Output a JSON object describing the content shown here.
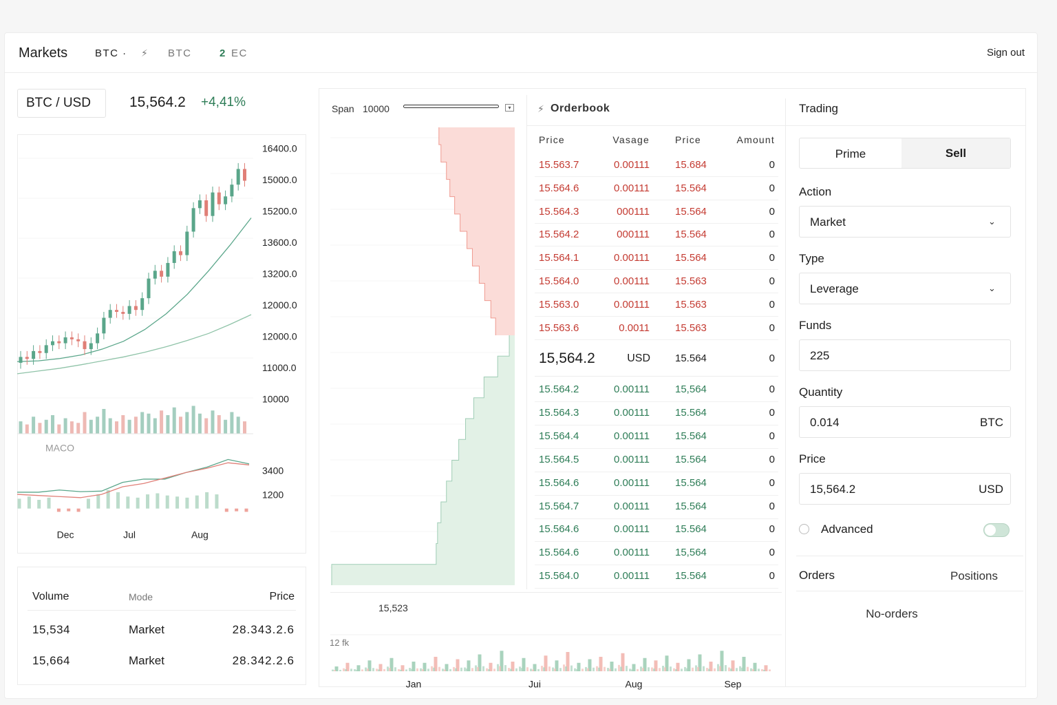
{
  "header": {
    "title": "Markets",
    "nav": [
      "BTC ·",
      "BTC"
    ],
    "count": "2",
    "count_unit": "EC",
    "sign_out": "Sign out"
  },
  "ticker": {
    "pair": "BTC / USD",
    "price": "15,564.2",
    "change": "+4,41%"
  },
  "trades": {
    "columns": [
      "Volume",
      "Mode",
      "Price"
    ],
    "rows": [
      [
        "15,534",
        "Market",
        "28.343.2.6"
      ],
      [
        "15,664",
        "Market",
        "28.342.2.6"
      ]
    ]
  },
  "orderbook": {
    "title": "Orderbook",
    "columns": [
      "Price",
      "Vasage",
      "Price",
      "Amount"
    ],
    "asks": [
      [
        "15.563.7",
        "0.00111",
        "15.684",
        "0"
      ],
      [
        "15.564.6",
        "0.00111",
        "15.564",
        "0"
      ],
      [
        "15.564.3",
        "000111",
        "15.564",
        "0"
      ],
      [
        "15.564.2",
        "000111",
        "15.564",
        "0"
      ],
      [
        "15.564.1",
        "0.00111",
        "15.564",
        "0"
      ],
      [
        "15.564.0",
        "0.00111",
        "15.563",
        "0"
      ],
      [
        "15.563.0",
        "0.00111",
        "15.563",
        "0"
      ],
      [
        "15.563.6",
        "0.0011",
        "15.563",
        "0"
      ]
    ],
    "mid": [
      "15,564.2",
      "USD",
      "15.564",
      "0"
    ],
    "bids": [
      [
        "15.564.2",
        "0.00111",
        "15,564",
        "0"
      ],
      [
        "15.564.3",
        "0.00111",
        "15.564",
        "0"
      ],
      [
        "15.564.4",
        "0.00111",
        "15.564",
        "0"
      ],
      [
        "15.564.5",
        "0.00111",
        "15.564",
        "0"
      ],
      [
        "15.564.6",
        "0.00111",
        "15.564",
        "0"
      ],
      [
        "15.564.7",
        "0.00111",
        "15.564",
        "0"
      ],
      [
        "15.564.6",
        "0.00111",
        "15.564",
        "0"
      ],
      [
        "15.564.6",
        "0.00111",
        "15,564",
        "0"
      ],
      [
        "15.564.0",
        "0.00111",
        "15.564",
        "0"
      ]
    ]
  },
  "trading": {
    "title": "Trading",
    "tabs": [
      "Prime",
      "Sell"
    ],
    "fields": [
      {
        "label": "Action",
        "value": "Market",
        "select": true
      },
      {
        "label": "Type",
        "value": "Leverage",
        "select": true
      },
      {
        "label": "Funds",
        "value": "225"
      },
      {
        "label": "Quantity",
        "value": "0.014",
        "unit": "BTC"
      },
      {
        "label": "Price",
        "value": "15,564.2",
        "unit": "USD"
      }
    ],
    "advanced": "Advanced",
    "list_tabs": [
      "Orders",
      "Positions"
    ],
    "empty": "No-orders"
  },
  "chart_data": [
    {
      "type": "candlestick",
      "categories": [
        null,
        null,
        null,
        null,
        null,
        null,
        null,
        "Dec",
        null,
        null,
        null,
        null,
        null,
        null,
        null,
        null,
        null,
        "Jul",
        null,
        null,
        null,
        null,
        null,
        null,
        null,
        null,
        null,
        null,
        "Aug",
        null,
        null,
        null,
        null,
        null,
        null,
        null
      ],
      "open": [
        10950,
        11100,
        11050,
        11250,
        11200,
        11400,
        11500,
        11450,
        11600,
        11550,
        11500,
        11300,
        11450,
        11700,
        12100,
        12300,
        12250,
        12200,
        12400,
        12300,
        12600,
        13100,
        13300,
        13150,
        13500,
        13800,
        13700,
        14300,
        14900,
        15100,
        14700,
        15300,
        15000,
        15200,
        15500,
        15900
      ],
      "high": [
        11250,
        11250,
        11400,
        11400,
        11550,
        11650,
        11650,
        11750,
        11750,
        11700,
        11650,
        11600,
        11850,
        12250,
        12450,
        12450,
        12400,
        12550,
        12550,
        12750,
        13250,
        13450,
        13450,
        13650,
        13950,
        13950,
        14450,
        15050,
        15250,
        15250,
        15450,
        15450,
        15350,
        15650,
        16050,
        16050
      ],
      "low": [
        10800,
        10900,
        10900,
        11050,
        11050,
        11250,
        11300,
        11300,
        11400,
        11350,
        11150,
        11150,
        11300,
        11550,
        11950,
        12100,
        12050,
        12050,
        12150,
        12150,
        12450,
        12950,
        13000,
        13000,
        13350,
        13550,
        13550,
        14150,
        14750,
        14550,
        14550,
        14850,
        14850,
        15050,
        15350,
        15450
      ],
      "close": [
        11100,
        11050,
        11250,
        11200,
        11400,
        11500,
        11450,
        11600,
        11550,
        11500,
        11300,
        11450,
        11700,
        12100,
        12300,
        12250,
        12200,
        12400,
        12300,
        12600,
        13100,
        13300,
        13150,
        13500,
        13800,
        13700,
        14300,
        14900,
        15100,
        14700,
        15300,
        15000,
        15200,
        15500,
        15900,
        15600
      ],
      "ylim": [
        10000,
        16400
      ],
      "y_labels": [
        "16400.0",
        "15000.0",
        "15200.0",
        "13600.0",
        "13200.0",
        "12000.0",
        "12000.0",
        "11000.0",
        "10000"
      ],
      "up_color": "#5aa68a",
      "down_color": "#e07f77",
      "moving_averages": [
        {
          "color": "#5aa68a",
          "values": [
            10980,
            11000,
            11060,
            11150,
            11300,
            11500,
            11800,
            12200,
            12700,
            13300,
            13950,
            14650
          ]
        },
        {
          "color": "#8fc3a8",
          "values": [
            10670,
            10740,
            10810,
            10900,
            11000,
            11100,
            11220,
            11360,
            11520,
            11700,
            11930,
            12180
          ]
        }
      ],
      "volume": {
        "ylim": [
          0,
          100
        ],
        "values": [
          40,
          30,
          55,
          35,
          45,
          60,
          30,
          50,
          40,
          35,
          70,
          45,
          55,
          80,
          50,
          40,
          60,
          45,
          55,
          70,
          65,
          50,
          75,
          60,
          85,
          55,
          70,
          90,
          65,
          50,
          75,
          60,
          45,
          70,
          55,
          40
        ]
      }
    },
    {
      "type": "macd",
      "title": "MACO",
      "ylim": [
        -400,
        5600
      ],
      "yticks": [
        3400,
        1200
      ],
      "series": [
        {
          "color": "#5aa68a",
          "values": [
            1500,
            1500,
            1700,
            1550,
            1600,
            2400,
            2700,
            2700,
            3300,
            3800,
            4500,
            4100
          ]
        },
        {
          "color": "#e07f77",
          "values": [
            1300,
            1200,
            1100,
            1000,
            1300,
            2000,
            2300,
            2800,
            3300,
            3700,
            4200,
            4000
          ]
        }
      ],
      "histogram": {
        "up_color": "#bcdccb",
        "down_color": "#eea39b",
        "values": [
          900,
          1100,
          800,
          1000,
          -300,
          -250,
          -300,
          900,
          1300,
          1700,
          1500,
          1100,
          1000,
          1300,
          1400,
          1200,
          1100,
          1000,
          1200,
          1500,
          1300,
          -300,
          -250,
          -300
        ]
      }
    },
    {
      "type": "depth",
      "span_label": "Span",
      "span": 10000,
      "price_label": "15,523",
      "xlim": [
        0,
        270
      ],
      "asks": {
        "color": "#fbdcd8",
        "line": "#ef9a90",
        "values": [
          111,
          108,
          100,
          95,
          88,
          80,
          70,
          62,
          52,
          44,
          35,
          28
        ]
      },
      "bids": {
        "color": "#e2f1e6",
        "line": "#9fcdb5",
        "values": [
          8,
          25,
          45,
          60,
          72,
          82,
          92,
          100,
          108,
          113,
          115,
          268
        ]
      }
    },
    {
      "type": "bar",
      "label": "12 fk",
      "ylim": [
        0,
        100
      ],
      "categories": [
        null,
        null,
        null,
        null,
        null,
        null,
        null,
        "Jan",
        null,
        null,
        null,
        null,
        null,
        null,
        null,
        null,
        null,
        null,
        "Jui",
        null,
        null,
        null,
        null,
        null,
        null,
        null,
        null,
        "Aug",
        null,
        null,
        null,
        null,
        null,
        null,
        null,
        null,
        "Sep",
        null,
        null,
        null
      ],
      "values": [
        20,
        35,
        25,
        45,
        30,
        55,
        25,
        40,
        35,
        60,
        30,
        50,
        45,
        70,
        35,
        85,
        40,
        55,
        30,
        65,
        45,
        80,
        35,
        50,
        60,
        40,
        75,
        30,
        55,
        45,
        65,
        35,
        50,
        70,
        40,
        85,
        45,
        60,
        35,
        25
      ],
      "colors": [
        "#a9d3bd",
        "#f3bdb7",
        "#a9d3bd",
        "#a9d3bd",
        "#f3bdb7",
        "#a9d3bd",
        "#f3bdb7",
        "#a9d3bd",
        "#a9d3bd",
        "#f3bdb7",
        "#a9d3bd",
        "#f3bdb7",
        "#a9d3bd",
        "#a9d3bd",
        "#f3bdb7",
        "#a9d3bd",
        "#f3bdb7",
        "#a9d3bd",
        "#a9d3bd",
        "#f3bdb7",
        "#a9d3bd",
        "#f3bdb7",
        "#a9d3bd",
        "#a9d3bd",
        "#f3bdb7",
        "#a9d3bd",
        "#f3bdb7",
        "#a9d3bd",
        "#a9d3bd",
        "#f3bdb7",
        "#a9d3bd",
        "#f3bdb7",
        "#a9d3bd",
        "#a9d3bd",
        "#f3bdb7",
        "#a9d3bd",
        "#f3bdb7",
        "#a9d3bd",
        "#a9d3bd",
        "#f3bdb7"
      ]
    }
  ]
}
